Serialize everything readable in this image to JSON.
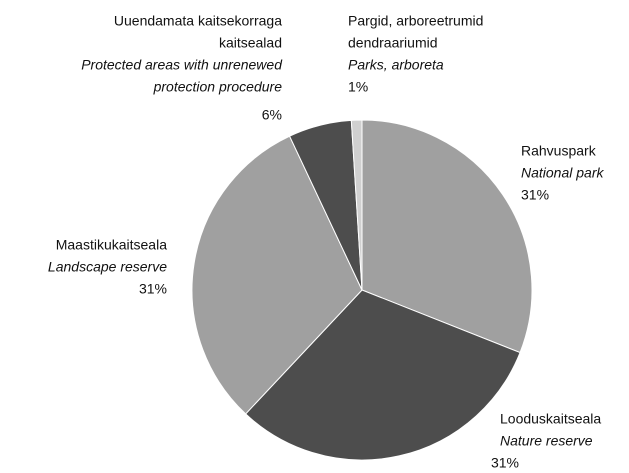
{
  "chart_data": {
    "type": "pie",
    "categories": [
      [
        "Rahvuspark"
      ],
      [
        "Looduskaitseala"
      ],
      [
        "Maastikukaitseala"
      ],
      [
        "Uuendamata kaitsekorraga",
        "kaitsealad"
      ],
      [
        "Pargid, arboreetrumid",
        "dendraariumid"
      ]
    ],
    "categories_en": [
      [
        "National park"
      ],
      [
        "Nature reserve"
      ],
      [
        "Landscape reserve"
      ],
      [
        "Protected areas with unrenewed",
        "protection procedure"
      ],
      [
        "Parks, arboreta"
      ]
    ],
    "values": [
      31,
      31,
      31,
      6,
      1
    ],
    "value_labels": [
      "31%",
      "31%",
      "31%",
      "6%",
      "1%"
    ],
    "colors": [
      "#a0a0a0",
      "#4d4d4d",
      "#a0a0a0",
      "#4d4d4d",
      "#d0d0d0"
    ]
  }
}
